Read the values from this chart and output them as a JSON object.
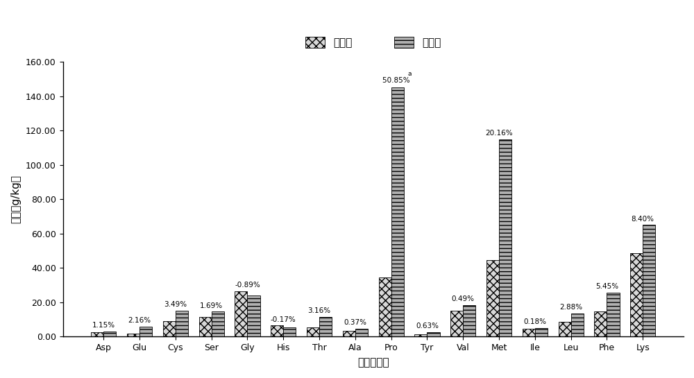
{
  "categories": [
    "Asp",
    "Glu",
    "Cys",
    "Ser",
    "Gly",
    "His",
    "Thr",
    "Ala",
    "Pro",
    "Tyr",
    "Val",
    "Met",
    "Ile",
    "Leu",
    "Phe",
    "Lys"
  ],
  "before": [
    2.5,
    1.8,
    9.0,
    11.5,
    26.5,
    6.5,
    5.5,
    3.5,
    34.5,
    1.5,
    15.0,
    44.5,
    4.5,
    8.5,
    14.5,
    48.5
  ],
  "after": [
    3.0,
    5.8,
    15.0,
    14.5,
    24.0,
    5.2,
    11.5,
    4.5,
    145.0,
    2.5,
    18.5,
    115.0,
    5.0,
    13.5,
    25.5,
    65.0
  ],
  "labels": [
    "1.15%",
    "2.16%",
    "3.49%",
    "1.69%",
    "-0.89%",
    "-0.17%",
    "3.16%",
    "0.37%",
    "50.85%",
    "0.63%",
    "0.49%",
    "20.16%",
    "0.18%",
    "2.88%",
    "5.45%",
    "8.40%"
  ],
  "before_color": "#d8d8d8",
  "before_hatch": "xxx",
  "after_color": "#b0b0b0",
  "after_hatch": "---",
  "xlabel": "氨基酸组成",
  "ylabel": "含量（g/kg）",
  "ylim": [
    0,
    160
  ],
  "yticks": [
    0,
    20,
    40,
    60,
    80,
    100,
    120,
    140,
    160
  ],
  "legend_labels": [
    "能解前",
    "能解后"
  ],
  "bar_width": 0.35,
  "figsize": [
    10.0,
    5.45
  ],
  "dpi": 100
}
